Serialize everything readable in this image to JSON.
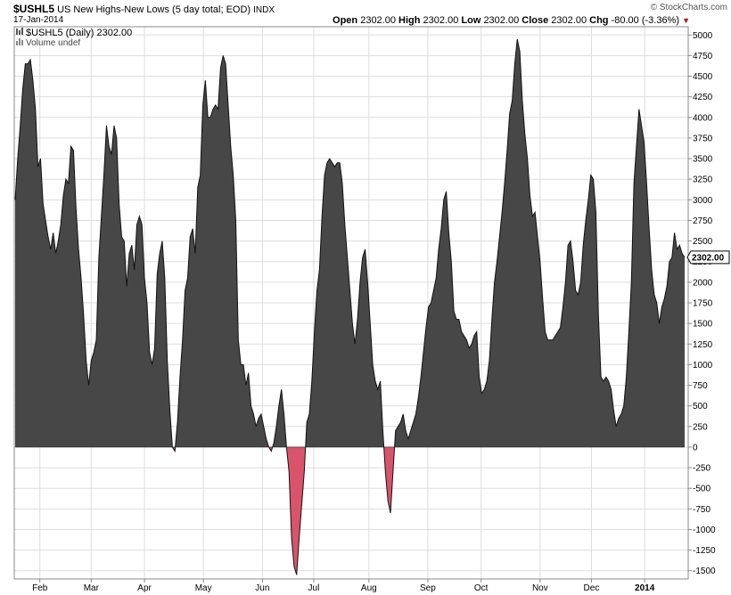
{
  "header": {
    "symbol": "$USHL5",
    "description": "US New Highs-New Lows (5 day total; EOD)",
    "exchange": "INDX",
    "date": "17-Jan-2014",
    "copyright": "© StockCharts.com",
    "open_label": "Open",
    "open": "2302.00",
    "high_label": "High",
    "high": "2302.00",
    "low_label": "Low",
    "low": "2302.00",
    "close_label": "Close",
    "close": "2302.00",
    "chg_label": "Chg",
    "chg": "-80.00 (-3.36%)",
    "chg_marker": "▼"
  },
  "legend": {
    "series_text": "$USHL5 (Daily) 2302.00",
    "volume_text": "Volume undef"
  },
  "chart_data": {
    "type": "area",
    "ylim": [
      -1600,
      5100
    ],
    "yticks": [
      -1500,
      -1250,
      -1000,
      -750,
      -500,
      -250,
      0,
      250,
      500,
      750,
      1000,
      1250,
      1500,
      1750,
      2000,
      2250,
      2500,
      2750,
      3000,
      3250,
      3500,
      3750,
      4000,
      4250,
      4500,
      4750,
      5000
    ],
    "xlabels": [
      {
        "label": "Feb",
        "bold": false,
        "t": 0.0369
      },
      {
        "label": "Mar",
        "bold": false,
        "t": 0.1136
      },
      {
        "label": "Apr",
        "bold": false,
        "t": 0.1932
      },
      {
        "label": "May",
        "bold": false,
        "t": 0.2812
      },
      {
        "label": "Jun",
        "bold": false,
        "t": 0.3693
      },
      {
        "label": "Jul",
        "bold": false,
        "t": 0.446
      },
      {
        "label": "Aug",
        "bold": false,
        "t": 0.5284
      },
      {
        "label": "Sep",
        "bold": false,
        "t": 0.6164
      },
      {
        "label": "Oct",
        "bold": false,
        "t": 0.696
      },
      {
        "label": "Nov",
        "bold": false,
        "t": 0.7841
      },
      {
        "label": "Dec",
        "bold": false,
        "t": 0.8608
      },
      {
        "label": "2014",
        "bold": true,
        "t": 0.9403
      }
    ],
    "last_value_label": "2302.00",
    "colors": {
      "positive": "#474747",
      "negative": "#d9546b",
      "line": "#111111",
      "grid": "#dddddd"
    },
    "values": [
      3000,
      3500,
      3900,
      4350,
      4650,
      4650,
      4700,
      4450,
      4100,
      3400,
      3500,
      2950,
      2750,
      2550,
      2400,
      2600,
      2350,
      2500,
      2700,
      3050,
      3250,
      3200,
      3650,
      3600,
      2900,
      2400,
      2050,
      1600,
      1050,
      750,
      1050,
      1150,
      1300,
      2300,
      2800,
      3300,
      3900,
      3650,
      3550,
      3900,
      3750,
      2950,
      2550,
      2500,
      1950,
      2350,
      2450,
      2150,
      2700,
      2800,
      2700,
      2050,
      1750,
      1150,
      1000,
      1200,
      2100,
      2350,
      2500,
      2050,
      1050,
      450,
      0,
      -50,
      300,
      850,
      1300,
      1900,
      2050,
      2550,
      2650,
      2350,
      3150,
      3300,
      4150,
      4450,
      4000,
      4000,
      4100,
      4150,
      4100,
      4600,
      4750,
      4650,
      4150,
      3650,
      3300,
      2750,
      1300,
      1000,
      1000,
      750,
      900,
      500,
      400,
      250,
      350,
      400,
      250,
      100,
      0,
      -50,
      50,
      250,
      500,
      700,
      400,
      0,
      -300,
      -1100,
      -1450,
      -1550,
      -1100,
      -700,
      -300,
      300,
      400,
      800,
      1400,
      1900,
      2150,
      2800,
      3300,
      3450,
      3500,
      3450,
      3400,
      3450,
      3450,
      3200,
      2700,
      2300,
      1900,
      1500,
      1250,
      1550,
      2000,
      2300,
      2400,
      2000,
      1500,
      1000,
      800,
      700,
      800,
      200,
      -300,
      -650,
      -800,
      -300,
      200,
      250,
      300,
      400,
      200,
      100,
      200,
      300,
      400,
      600,
      850,
      1150,
      1450,
      1700,
      1750,
      1900,
      2050,
      2400,
      2650,
      3000,
      3100,
      2600,
      2250,
      1650,
      1550,
      1550,
      1400,
      1350,
      1300,
      1200,
      1250,
      1350,
      1400,
      850,
      650,
      700,
      800,
      1050,
      1550,
      2000,
      2250,
      2550,
      2850,
      3200,
      3600,
      4050,
      4200,
      4650,
      4950,
      4800,
      4200,
      3800,
      3500,
      3050,
      2800,
      2850,
      2550,
      2250,
      1800,
      1400,
      1300,
      1300,
      1300,
      1350,
      1400,
      1450,
      1700,
      2000,
      2450,
      2500,
      2250,
      1900,
      1850,
      2000,
      2450,
      2750,
      3000,
      3300,
      3250,
      2850,
      1600,
      850,
      800,
      850,
      800,
      700,
      450,
      250,
      350,
      400,
      500,
      850,
      1400,
      2000,
      3200,
      3650,
      4100,
      3900,
      3700,
      3200,
      2650,
      2150,
      1850,
      1750,
      1500,
      1700,
      1800,
      1950,
      2250,
      2300,
      2600,
      2400,
      2450,
      2350,
      2302
    ]
  }
}
